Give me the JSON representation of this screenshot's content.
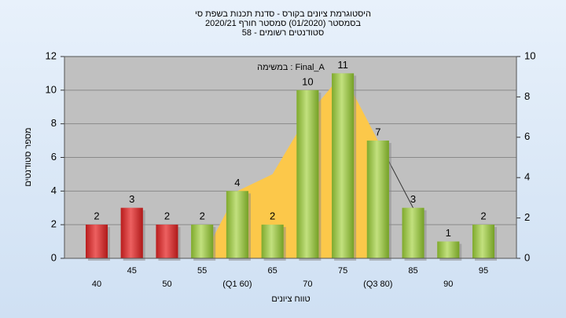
{
  "chart_data": {
    "type": "bar",
    "title": [
      "היסטוגרמת ציונים בקורס - סדנת תכנות בשפת סי",
      "בסמסטר  (01/2020)  סמסטר חורף 2020/21",
      "סטודנטים רשומים - 58"
    ],
    "annotation": "במשימה : Final_A",
    "y_label": "מספר סטודנטים",
    "x_label": "טווח ציונים",
    "categories": [
      "40",
      "45",
      "50",
      "55",
      "(Q1 60)",
      "65",
      "70",
      "75",
      "(Q3 80)",
      "85",
      "90",
      "95"
    ],
    "series": [
      {
        "type": "bar",
        "values": [
          2,
          3,
          2,
          2,
          4,
          2,
          10,
          11,
          7,
          3,
          1,
          2
        ],
        "colors": [
          "#d92b2b",
          "#d92b2b",
          "#d92b2b",
          "#9bc53d",
          "#9bc53d",
          "#9bc53d",
          "#9bc53d",
          "#9bc53d",
          "#9bc53d",
          "#9bc53d",
          "#9bc53d",
          "#9bc53d"
        ]
      },
      {
        "type": "area",
        "color": "#fcc84a",
        "values": [
          null,
          null,
          null,
          0,
          4,
          5,
          8.5,
          11,
          7,
          null,
          null,
          null
        ]
      },
      {
        "type": "line",
        "color": "#333333",
        "values": [
          null,
          null,
          null,
          null,
          null,
          null,
          null,
          null,
          7,
          3,
          null,
          null
        ]
      }
    ],
    "ylim": [
      0,
      12
    ],
    "yticks": [
      0,
      2,
      4,
      6,
      8,
      10,
      12
    ],
    "y2lim": [
      0,
      10
    ],
    "y2ticks": [
      0,
      2,
      4,
      6,
      8,
      10
    ],
    "grid": true
  }
}
